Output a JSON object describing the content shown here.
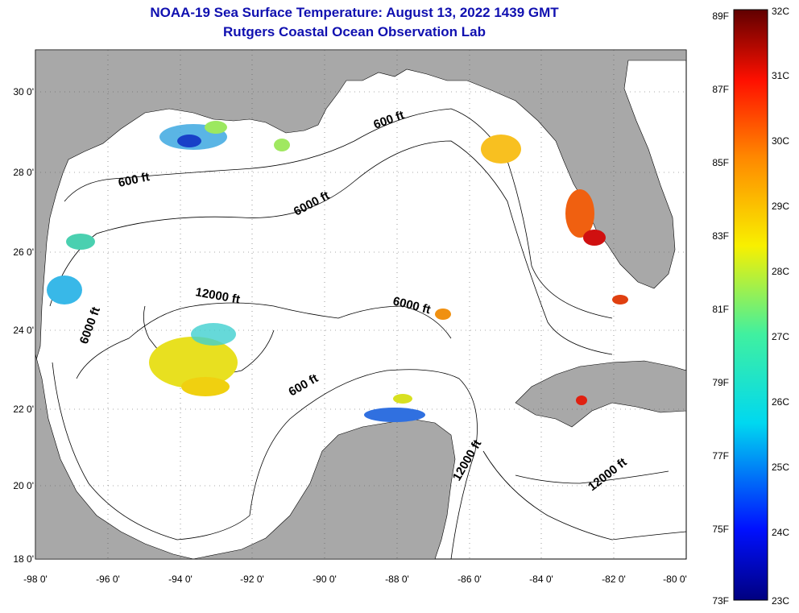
{
  "header": {
    "title": "NOAA-19 Sea Surface Temperature:  August 13, 2022 1439 GMT",
    "subtitle": "Rutgers Coastal Ocean Observation Lab"
  },
  "axes": {
    "lon_labels": [
      "-98 0'",
      "-96 0'",
      "-94 0'",
      "-92 0'",
      "-90 0'",
      "-88 0'",
      "-86 0'",
      "-84 0'",
      "-82 0'",
      "-80 0'"
    ],
    "lat_labels": [
      "30 0'",
      "28 0'",
      "26 0'",
      "24 0'",
      "22 0'",
      "20 0'",
      "18 0'"
    ],
    "lon_range": [
      -98,
      -80
    ],
    "lat_range": [
      18,
      31
    ]
  },
  "contours": {
    "labels": [
      "600 ft",
      "600 ft",
      "600 ft",
      "6000 ft",
      "6000 ft",
      "6000 ft",
      "12000 ft",
      "12000 ft",
      "12000 ft"
    ]
  },
  "colorbar": {
    "fahrenheit": [
      "89F",
      "87F",
      "85F",
      "83F",
      "81F",
      "79F",
      "77F",
      "75F",
      "73F"
    ],
    "celsius": [
      "32C",
      "31C",
      "30C",
      "29C",
      "28C",
      "27C",
      "26C",
      "25C",
      "24C",
      "23C"
    ],
    "range_c": [
      23,
      32
    ]
  },
  "colors": {
    "land": "#a8a8a8",
    "title": "#1010b0",
    "cold": "#0000a0",
    "warm": "#c00000"
  }
}
